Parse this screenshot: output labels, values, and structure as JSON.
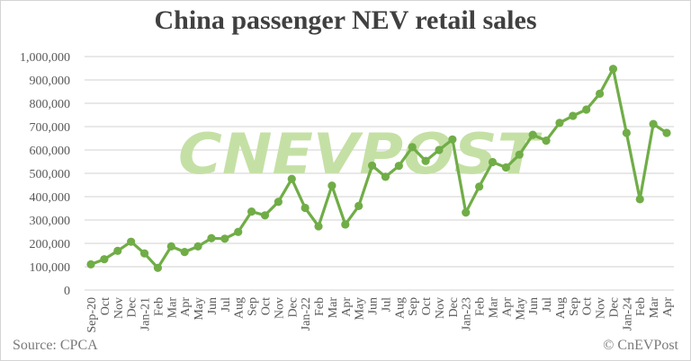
{
  "chart_data": {
    "type": "line",
    "title": "China passenger NEV retail sales",
    "xlabel": "",
    "ylabel": "",
    "ylim": [
      0,
      1000000
    ],
    "yticks": [
      0,
      100000,
      200000,
      300000,
      400000,
      500000,
      600000,
      700000,
      800000,
      900000,
      1000000
    ],
    "ytick_labels": [
      "0",
      "100,000",
      "200,000",
      "300,000",
      "400,000",
      "500,000",
      "600,000",
      "700,000",
      "800,000",
      "900,000",
      "1,000,000"
    ],
    "grid": true,
    "legend": null,
    "categories": [
      "Sep-20",
      "Oct",
      "Nov",
      "Dec",
      "Jan-21",
      "Feb",
      "Mar",
      "Apr",
      "May",
      "Jun",
      "Jul",
      "Aug",
      "Sep",
      "Oct",
      "Nov",
      "Dec",
      "Jan-22",
      "Feb",
      "Mar",
      "Apr",
      "May",
      "Jun",
      "Jul",
      "Aug",
      "Sep",
      "Oct",
      "Nov",
      "Dec",
      "Jan-23",
      "Feb",
      "Mar",
      "Apr",
      "May",
      "Jun",
      "Jul",
      "Aug",
      "Sep",
      "Oct",
      "Nov",
      "Dec",
      "Jan-24",
      "Feb",
      "Mar",
      "Apr"
    ],
    "series": [
      {
        "name": "NEV retail sales",
        "color": "#70ad47",
        "values": [
          110000,
          132000,
          168000,
          207000,
          157000,
          95000,
          187000,
          163000,
          187000,
          222000,
          220000,
          249000,
          336000,
          320000,
          378000,
          476000,
          352000,
          273000,
          447000,
          281000,
          360000,
          533000,
          485000,
          532000,
          612000,
          553000,
          600000,
          645000,
          332000,
          443000,
          548000,
          525000,
          580000,
          665000,
          640000,
          716000,
          746000,
          773000,
          841000,
          947000,
          673000,
          389000,
          711000,
          673000
        ]
      }
    ],
    "watermark": "CNEVPOST",
    "source": "Source: CPCA",
    "credit": "© CnEVPost"
  },
  "colors": {
    "line": "#70ad47",
    "watermark": "#c5e0a5",
    "grid": "#d9d9d9",
    "text": "#595959",
    "title": "#404040"
  }
}
